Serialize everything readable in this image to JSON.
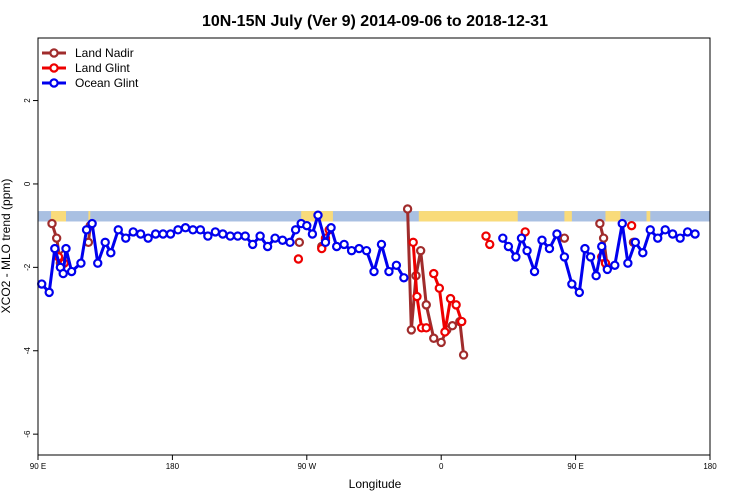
{
  "chart_data": {
    "type": "line",
    "title": "10N-15N July (Ver 9)   2014-09-06 to 2018-12-31",
    "xlabel": "Longitude",
    "ylabel": "XCO2 - MLO trend (ppm)",
    "xlim": [
      90,
      450
    ],
    "ylim": [
      -6.5,
      3.5
    ],
    "x_ticks": [
      {
        "value": 90,
        "label": "90 E"
      },
      {
        "value": 162,
        "label": "180"
      },
      {
        "value": 234,
        "label": "90 W"
      },
      {
        "value": 306,
        "label": "0"
      },
      {
        "value": 378,
        "label": "90 E"
      },
      {
        "value": 450,
        "label": "180"
      }
    ],
    "y_ticks": [
      {
        "value": 2,
        "label": "2"
      },
      {
        "value": 0,
        "label": "0"
      },
      {
        "value": -2,
        "label": "-2"
      },
      {
        "value": -4,
        "label": "-4"
      },
      {
        "value": -6,
        "label": "-6"
      }
    ],
    "legend_position": "top-left",
    "band": {
      "y": [
        -0.9,
        -0.65
      ],
      "color": "#a9c0e2",
      "land_color": "#f9db7a",
      "land_ranges": [
        [
          97,
          105
        ],
        [
          117,
          118
        ],
        [
          231,
          248
        ],
        [
          294,
          347
        ],
        [
          372,
          376
        ],
        [
          394,
          402
        ],
        [
          416,
          418
        ]
      ]
    },
    "series": [
      {
        "name": "Land Nadir",
        "color": "#a02c2c",
        "segments": [
          [
            [
              97.5,
              -0.95
            ],
            [
              100,
              -1.3
            ],
            [
              102,
              -1.9
            ],
            [
              104,
              -1.7
            ]
          ],
          [
            [
              117,
              -1.4
            ],
            [
              118,
              -1.0
            ]
          ],
          [
            [
              230,
              -1.4
            ]
          ],
          [
            [
              242,
              -1.5
            ],
            [
              244,
              -1.35
            ]
          ],
          [
            [
              288,
              -0.6
            ],
            [
              290,
              -3.5
            ],
            [
              292.5,
              -2.2
            ],
            [
              295,
              -1.6
            ],
            [
              298,
              -2.9
            ],
            [
              302,
              -3.7
            ],
            [
              306,
              -3.8
            ],
            [
              309,
              -3.5
            ],
            [
              312,
              -3.4
            ],
            [
              316,
              -3.3
            ],
            [
              318,
              -4.1
            ]
          ],
          [
            [
              372,
              -1.3
            ]
          ],
          [
            [
              391,
              -0.95
            ],
            [
              393,
              -1.3
            ],
            [
              395,
              -2.0
            ]
          ],
          [
            [
              409,
              -1.4
            ]
          ]
        ]
      },
      {
        "name": "Land Glint",
        "color": "#ee0000",
        "segments": [
          [
            [
              101,
              -1.75
            ],
            [
              104,
              -1.9
            ]
          ],
          [
            [
              229.5,
              -1.8
            ]
          ],
          [
            [
              242,
              -1.55
            ],
            [
              244,
              -1.3
            ],
            [
              246,
              -1.1
            ]
          ],
          [
            [
              291,
              -1.4
            ],
            [
              293,
              -2.7
            ],
            [
              295.5,
              -3.45
            ],
            [
              298,
              -3.45
            ]
          ],
          [
            [
              302,
              -2.15
            ],
            [
              305,
              -2.5
            ],
            [
              308,
              -3.55
            ],
            [
              311,
              -2.75
            ],
            [
              314,
              -2.9
            ],
            [
              317,
              -3.3
            ]
          ],
          [
            [
              330,
              -1.25
            ],
            [
              332,
              -1.45
            ]
          ],
          [
            [
              351,
              -1.15
            ]
          ],
          [
            [
              392,
              -1.75
            ],
            [
              394,
              -1.9
            ]
          ],
          [
            [
              408,
              -1.0
            ]
          ]
        ]
      },
      {
        "name": "Ocean Glint",
        "color": "#0000ee",
        "segments": [
          [
            [
              92,
              -2.4
            ],
            [
              96,
              -2.6
            ],
            [
              99,
              -1.55
            ],
            [
              102,
              -2.0
            ],
            [
              103.5,
              -2.15
            ],
            [
              105,
              -1.55
            ],
            [
              108,
              -2.1
            ],
            [
              113,
              -1.9
            ],
            [
              116,
              -1.1
            ],
            [
              119,
              -0.95
            ],
            [
              122,
              -1.9
            ],
            [
              126,
              -1.4
            ],
            [
              129,
              -1.65
            ],
            [
              133,
              -1.1
            ],
            [
              137,
              -1.3
            ],
            [
              141,
              -1.15
            ],
            [
              145,
              -1.2
            ],
            [
              149,
              -1.3
            ],
            [
              153,
              -1.2
            ],
            [
              157,
              -1.2
            ],
            [
              161,
              -1.2
            ],
            [
              165,
              -1.1
            ],
            [
              169,
              -1.05
            ],
            [
              173,
              -1.1
            ],
            [
              177,
              -1.1
            ],
            [
              181,
              -1.25
            ],
            [
              185,
              -1.15
            ],
            [
              189,
              -1.2
            ],
            [
              193,
              -1.25
            ],
            [
              197,
              -1.25
            ],
            [
              201,
              -1.25
            ],
            [
              205,
              -1.45
            ],
            [
              209,
              -1.25
            ],
            [
              213,
              -1.5
            ],
            [
              217,
              -1.3
            ],
            [
              221,
              -1.35
            ],
            [
              225,
              -1.4
            ],
            [
              228,
              -1.1
            ],
            [
              231,
              -0.95
            ],
            [
              234,
              -1.0
            ],
            [
              237,
              -1.2
            ],
            [
              240,
              -0.75
            ],
            [
              244,
              -1.4
            ],
            [
              247,
              -1.05
            ],
            [
              250,
              -1.5
            ],
            [
              254,
              -1.45
            ],
            [
              258,
              -1.6
            ],
            [
              262,
              -1.55
            ],
            [
              266,
              -1.6
            ],
            [
              270,
              -2.1
            ],
            [
              274,
              -1.45
            ],
            [
              278,
              -2.1
            ],
            [
              282,
              -1.95
            ],
            [
              286,
              -2.25
            ]
          ],
          [
            [
              339,
              -1.3
            ],
            [
              342,
              -1.5
            ],
            [
              346,
              -1.75
            ],
            [
              349,
              -1.3
            ],
            [
              352,
              -1.6
            ],
            [
              356,
              -2.1
            ],
            [
              360,
              -1.35
            ],
            [
              364,
              -1.55
            ],
            [
              368,
              -1.2
            ],
            [
              372,
              -1.75
            ],
            [
              376,
              -2.4
            ],
            [
              380,
              -2.6
            ],
            [
              383,
              -1.55
            ],
            [
              386,
              -1.75
            ],
            [
              389,
              -2.2
            ],
            [
              392,
              -1.5
            ],
            [
              395,
              -2.05
            ],
            [
              399,
              -1.95
            ],
            [
              403,
              -0.95
            ],
            [
              406,
              -1.9
            ],
            [
              410,
              -1.4
            ],
            [
              414,
              -1.65
            ],
            [
              418,
              -1.1
            ],
            [
              422,
              -1.3
            ],
            [
              426,
              -1.1
            ],
            [
              430,
              -1.2
            ],
            [
              434,
              -1.3
            ],
            [
              438,
              -1.15
            ],
            [
              442,
              -1.2
            ]
          ]
        ]
      }
    ]
  }
}
